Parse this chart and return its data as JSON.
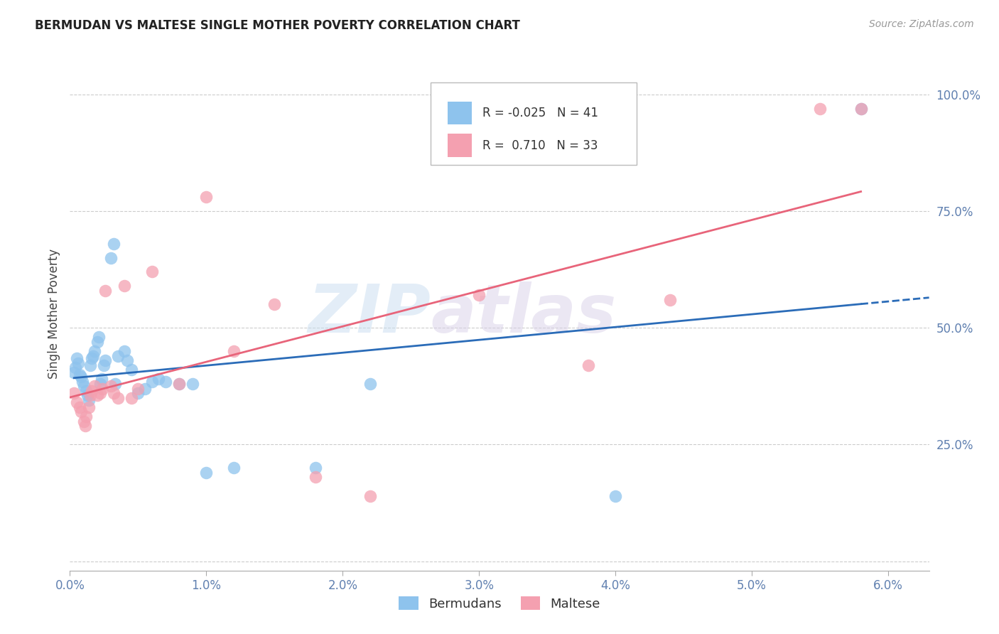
{
  "title": "BERMUDAN VS MALTESE SINGLE MOTHER POVERTY CORRELATION CHART",
  "source": "Source: ZipAtlas.com",
  "ylabel": "Single Mother Poverty",
  "y_ticks": [
    0.0,
    0.25,
    0.5,
    0.75,
    1.0
  ],
  "y_tick_labels": [
    "",
    "25.0%",
    "50.0%",
    "75.0%",
    "100.0%"
  ],
  "x_ticks": [
    0.0,
    0.01,
    0.02,
    0.03,
    0.04,
    0.05,
    0.06
  ],
  "x_tick_labels": [
    "0.0%",
    "1.0%",
    "2.0%",
    "3.0%",
    "4.0%",
    "5.0%",
    "6.0%"
  ],
  "xlim": [
    0.0,
    0.063
  ],
  "ylim": [
    -0.02,
    1.08
  ],
  "bermudan_color": "#8EC3ED",
  "maltese_color": "#F4A0B0",
  "bermudan_line_color": "#2B6CB8",
  "maltese_line_color": "#E8647A",
  "legend_R_bermudan": "-0.025",
  "legend_N_bermudan": "41",
  "legend_R_maltese": "0.710",
  "legend_N_maltese": "33",
  "watermark_zip": "ZIP",
  "watermark_atlas": "atlas",
  "grid_color": "#cccccc",
  "bermudan_x": [
    0.0003,
    0.0004,
    0.0005,
    0.0006,
    0.0007,
    0.0008,
    0.0009,
    0.001,
    0.0012,
    0.0013,
    0.0014,
    0.0015,
    0.0016,
    0.0017,
    0.0018,
    0.002,
    0.0021,
    0.0022,
    0.0023,
    0.0025,
    0.0026,
    0.003,
    0.0032,
    0.0033,
    0.0035,
    0.004,
    0.0042,
    0.0045,
    0.005,
    0.0055,
    0.006,
    0.0065,
    0.007,
    0.008,
    0.009,
    0.01,
    0.012,
    0.018,
    0.022,
    0.04,
    0.058
  ],
  "bermudan_y": [
    0.405,
    0.415,
    0.435,
    0.425,
    0.4,
    0.395,
    0.385,
    0.375,
    0.365,
    0.355,
    0.345,
    0.42,
    0.435,
    0.44,
    0.45,
    0.47,
    0.48,
    0.38,
    0.39,
    0.42,
    0.43,
    0.65,
    0.68,
    0.38,
    0.44,
    0.45,
    0.43,
    0.41,
    0.36,
    0.37,
    0.385,
    0.39,
    0.385,
    0.38,
    0.38,
    0.19,
    0.2,
    0.2,
    0.38,
    0.14,
    0.97
  ],
  "maltese_x": [
    0.0003,
    0.0005,
    0.0007,
    0.0008,
    0.001,
    0.0011,
    0.0012,
    0.0014,
    0.0015,
    0.0016,
    0.0018,
    0.002,
    0.0022,
    0.0024,
    0.0026,
    0.003,
    0.0032,
    0.0035,
    0.004,
    0.0045,
    0.005,
    0.006,
    0.008,
    0.01,
    0.012,
    0.015,
    0.018,
    0.022,
    0.03,
    0.038,
    0.044,
    0.055,
    0.058
  ],
  "maltese_y": [
    0.36,
    0.34,
    0.33,
    0.32,
    0.3,
    0.29,
    0.31,
    0.33,
    0.355,
    0.365,
    0.375,
    0.355,
    0.36,
    0.37,
    0.58,
    0.375,
    0.36,
    0.35,
    0.59,
    0.35,
    0.37,
    0.62,
    0.38,
    0.78,
    0.45,
    0.55,
    0.18,
    0.14,
    0.57,
    0.42,
    0.56,
    0.97,
    0.97
  ]
}
